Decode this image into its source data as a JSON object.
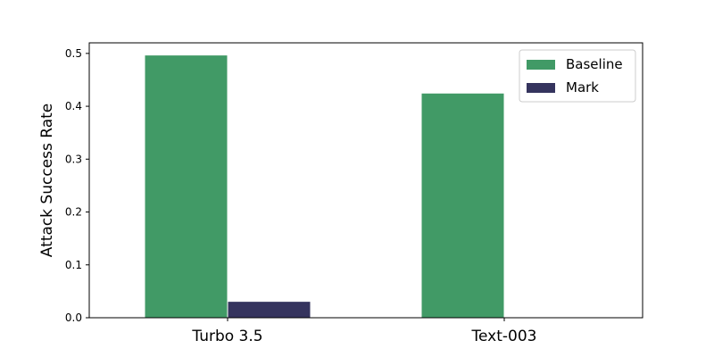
{
  "chart_data": {
    "type": "bar",
    "title": "",
    "xlabel": "",
    "ylabel": "Attack Success Rate",
    "categories": [
      "Turbo 3.5",
      "Text-003"
    ],
    "series": [
      {
        "name": "Baseline",
        "values": [
          0.497,
          0.425
        ],
        "color": "#419a66"
      },
      {
        "name": "Mark",
        "values": [
          0.031,
          0.0
        ],
        "color": "#35345e"
      }
    ],
    "ylim": [
      0,
      0.52
    ],
    "yticks": [
      "0.0",
      "0.1",
      "0.2",
      "0.3",
      "0.4",
      "0.5"
    ],
    "grid": false,
    "legend_position": "top-right"
  }
}
